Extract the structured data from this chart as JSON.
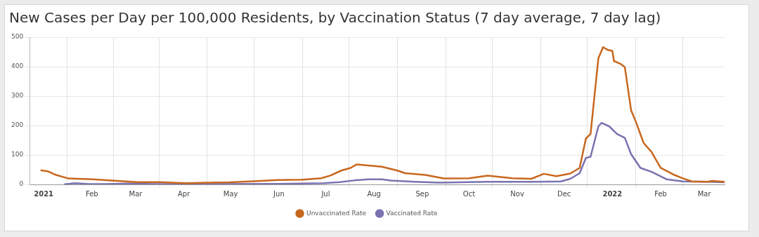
{
  "chart_data": {
    "type": "line",
    "title": "New Cases per Day per 100,000 Residents, by Vaccination Status (7 day average, 7 day lag)",
    "xlim": [
      "2020-12-23",
      "2022-03-14"
    ],
    "xticks": [
      {
        "value": "2021-01-01",
        "label": "2021"
      },
      {
        "value": "2021-01-16",
        "label": null
      },
      {
        "value": "2021-02-01",
        "label": "Feb"
      },
      {
        "value": "2021-02-15",
        "label": null
      },
      {
        "value": "2021-03-01",
        "label": "Mar"
      },
      {
        "value": "2021-03-16",
        "label": null
      },
      {
        "value": "2021-04-01",
        "label": "Apr"
      },
      {
        "value": "2021-04-16",
        "label": null
      },
      {
        "value": "2021-05-01",
        "label": "May"
      },
      {
        "value": "2021-05-16",
        "label": null
      },
      {
        "value": "2021-06-01",
        "label": "Jun"
      },
      {
        "value": "2021-06-16",
        "label": null
      },
      {
        "value": "2021-07-01",
        "label": "Jul"
      },
      {
        "value": "2021-07-16",
        "label": null
      },
      {
        "value": "2021-08-01",
        "label": "Aug"
      },
      {
        "value": "2021-08-16",
        "label": null
      },
      {
        "value": "2021-09-01",
        "label": "Sep"
      },
      {
        "value": "2021-09-16",
        "label": null
      },
      {
        "value": "2021-10-01",
        "label": "Oct"
      },
      {
        "value": "2021-10-16",
        "label": null
      },
      {
        "value": "2021-11-01",
        "label": "Nov"
      },
      {
        "value": "2021-11-16",
        "label": null
      },
      {
        "value": "2021-12-01",
        "label": "Dec"
      },
      {
        "value": "2021-12-16",
        "label": null
      },
      {
        "value": "2022-01-01",
        "label": "2022"
      },
      {
        "value": "2022-01-16",
        "label": null
      },
      {
        "value": "2022-02-01",
        "label": "Feb"
      },
      {
        "value": "2022-02-15",
        "label": null
      },
      {
        "value": "2022-03-01",
        "label": "Mar"
      }
    ],
    "ylim": [
      0,
      500
    ],
    "yticks": [
      0,
      100,
      200,
      300,
      400,
      500
    ],
    "grid": true,
    "legend": "bottom",
    "marker": "none",
    "line_style": "solid",
    "series": [
      {
        "name": "Unvaccinated Rate",
        "color": "#c8671e",
        "x": [
          "2020-12-30",
          "2021-01-04",
          "2021-01-09",
          "2021-01-17",
          "2021-02-02",
          "2021-02-14",
          "2021-03-02",
          "2021-03-17",
          "2021-04-02",
          "2021-04-17",
          "2021-04-30",
          "2021-05-16",
          "2021-05-31",
          "2021-06-16",
          "2021-06-28",
          "2021-07-04",
          "2021-07-11",
          "2021-07-17",
          "2021-07-21",
          "2021-07-27",
          "2021-08-06",
          "2021-08-16",
          "2021-08-21",
          "2021-09-03",
          "2021-09-15",
          "2021-10-01",
          "2021-10-13",
          "2021-10-29",
          "2021-11-10",
          "2021-11-18",
          "2021-11-26",
          "2021-12-05",
          "2021-12-11",
          "2021-12-15",
          "2021-12-18",
          "2021-12-23",
          "2021-12-26",
          "2021-12-29",
          "2022-01-01",
          "2022-01-02",
          "2022-01-06",
          "2022-01-09",
          "2022-01-13",
          "2022-01-16",
          "2022-01-21",
          "2022-01-26",
          "2022-02-01",
          "2022-02-09",
          "2022-02-15",
          "2022-02-21",
          "2022-03-03",
          "2022-03-06",
          "2022-03-14"
        ],
        "values": [
          48,
          44,
          32,
          20,
          17,
          13,
          8,
          8,
          4,
          6,
          7,
          11,
          15,
          16,
          21,
          30,
          47,
          56,
          68,
          65,
          60,
          47,
          38,
          32,
          20,
          21,
          30,
          21,
          19,
          36,
          28,
          37,
          56,
          156,
          171,
          428,
          466,
          457,
          453,
          419,
          410,
          398,
          252,
          214,
          141,
          111,
          56,
          34,
          21,
          10,
          9,
          12,
          9
        ]
      },
      {
        "name": "Vaccinated Rate",
        "color": "#7a72b0",
        "x": [
          "2021-01-14",
          "2021-01-21",
          "2021-01-29",
          "2021-02-10",
          "2021-02-25",
          "2021-03-12",
          "2021-04-11",
          "2021-05-31",
          "2021-06-30",
          "2021-07-10",
          "2021-07-20",
          "2021-07-28",
          "2021-08-06",
          "2021-08-12",
          "2021-08-27",
          "2021-09-12",
          "2021-10-13",
          "2021-11-13",
          "2021-11-29",
          "2021-12-05",
          "2021-12-11",
          "2021-12-15",
          "2021-12-18",
          "2021-12-23",
          "2021-12-25",
          "2021-12-30",
          "2022-01-04",
          "2022-01-09",
          "2022-01-13",
          "2022-01-19",
          "2022-01-26",
          "2022-02-05",
          "2022-02-15",
          "2022-03-03",
          "2022-03-14"
        ],
        "values": [
          0,
          4,
          2,
          1,
          3,
          1,
          1,
          2,
          4,
          8,
          14,
          17,
          17,
          13,
          9,
          6,
          9,
          9,
          10,
          19,
          38,
          90,
          94,
          197,
          209,
          197,
          171,
          158,
          103,
          56,
          43,
          17,
          10,
          9,
          7
        ]
      }
    ]
  }
}
